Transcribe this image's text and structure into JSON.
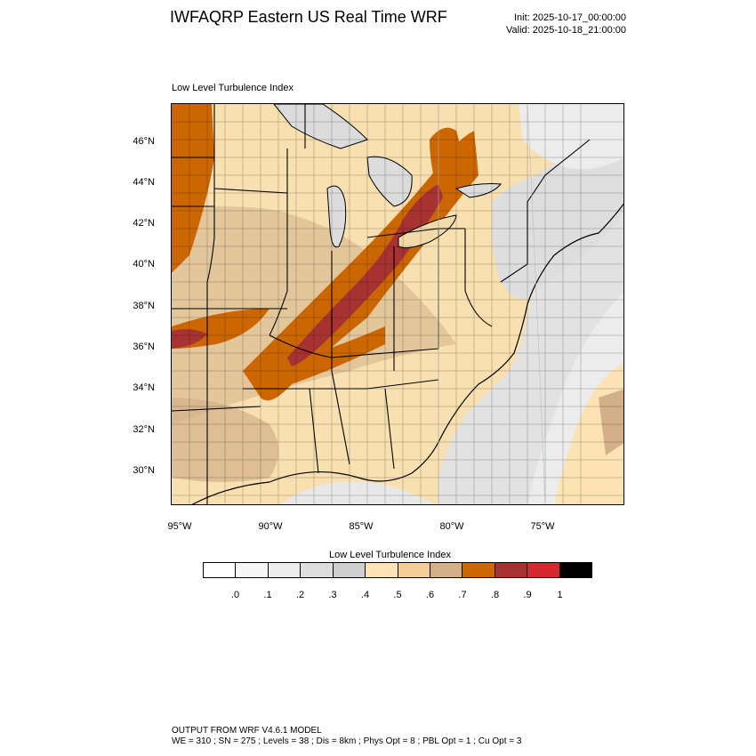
{
  "header": {
    "title": "IWFAQRP Eastern US Real Time WRF",
    "init": "Init: 2025-10-17_00:00:00",
    "valid": "Valid: 2025-10-18_21:00:00"
  },
  "map": {
    "subtitle": "Low Level Turbulence Index",
    "lat_labels": [
      "46°N",
      "44°N",
      "42°N",
      "40°N",
      "38°N",
      "36°N",
      "34°N",
      "32°N",
      "30°N"
    ],
    "lon_labels": [
      "95°W",
      "90°W",
      "85°W",
      "80°W",
      "75°W"
    ]
  },
  "legend": {
    "title": "Low Level Turbulence Index",
    "labels": [
      ".0",
      ".1",
      ".2",
      ".3",
      ".4",
      ".5",
      ".6",
      ".7",
      ".8",
      ".9",
      "1"
    ],
    "colors": [
      "#ffffff",
      "#f7f7f7",
      "#ececec",
      "#dedede",
      "#cfcfcf",
      "#fde3b3",
      "#f5cd97",
      "#d3b08a",
      "#cc6600",
      "#a83232",
      "#d42a2f",
      "#000000"
    ]
  },
  "footer": {
    "line1": "OUTPUT FROM WRF V4.6.1 MODEL",
    "line2": "WE = 310 ; SN = 275 ; Levels = 38 ; Dis = 8km ; Phys Opt = 8 ; PBL Opt = 1 ; Cu Opt = 3"
  }
}
